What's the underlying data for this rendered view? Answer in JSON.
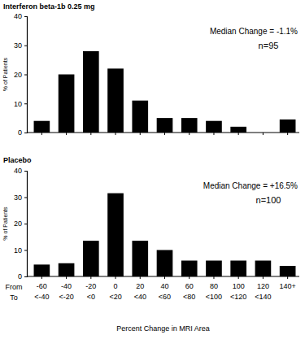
{
  "chart_data": [
    {
      "type": "bar",
      "title": "Interferon beta-1b 0.25 mg",
      "annotations": [
        "Median Change = -1.1%",
        "n=95"
      ],
      "ylabel": "% of Patients",
      "categories": [
        "-60\n<-40",
        "-40\n<-20",
        "-20\n<0",
        "0\n<20",
        "20\n<40",
        "40\n<60",
        "60\n<80",
        "80\n<100",
        "100\n<120",
        "120\n<140",
        "140+"
      ],
      "values": [
        4,
        20,
        28,
        22,
        11,
        5,
        5,
        4,
        2,
        0,
        4.5
      ],
      "color": "#000000",
      "ylim": [
        0,
        40
      ],
      "yticks": [
        0,
        10,
        20,
        30,
        40
      ],
      "tick_labels": "y"
    },
    {
      "type": "bar",
      "title": "Placebo",
      "annotations": [
        "Median Change = +16.5%",
        "n=100"
      ],
      "ylabel": "% of Patients",
      "xlabel": "Percent Change in MRI Area",
      "category_row_labels": [
        "From",
        "To"
      ],
      "categories": [
        "-60\n<-40",
        "-40\n<-20",
        "-20\n<0",
        "0\n<20",
        "20\n<40",
        "40\n<60",
        "60\n<80",
        "80\n<100",
        "100\n<120",
        "120\n<140",
        "140+"
      ],
      "values": [
        4.5,
        5,
        13.5,
        31.5,
        13.5,
        10,
        6,
        6,
        6,
        6,
        4
      ],
      "color": "#000000",
      "ylim": [
        0,
        40
      ],
      "yticks": [
        0,
        10,
        20,
        30,
        40
      ]
    }
  ]
}
